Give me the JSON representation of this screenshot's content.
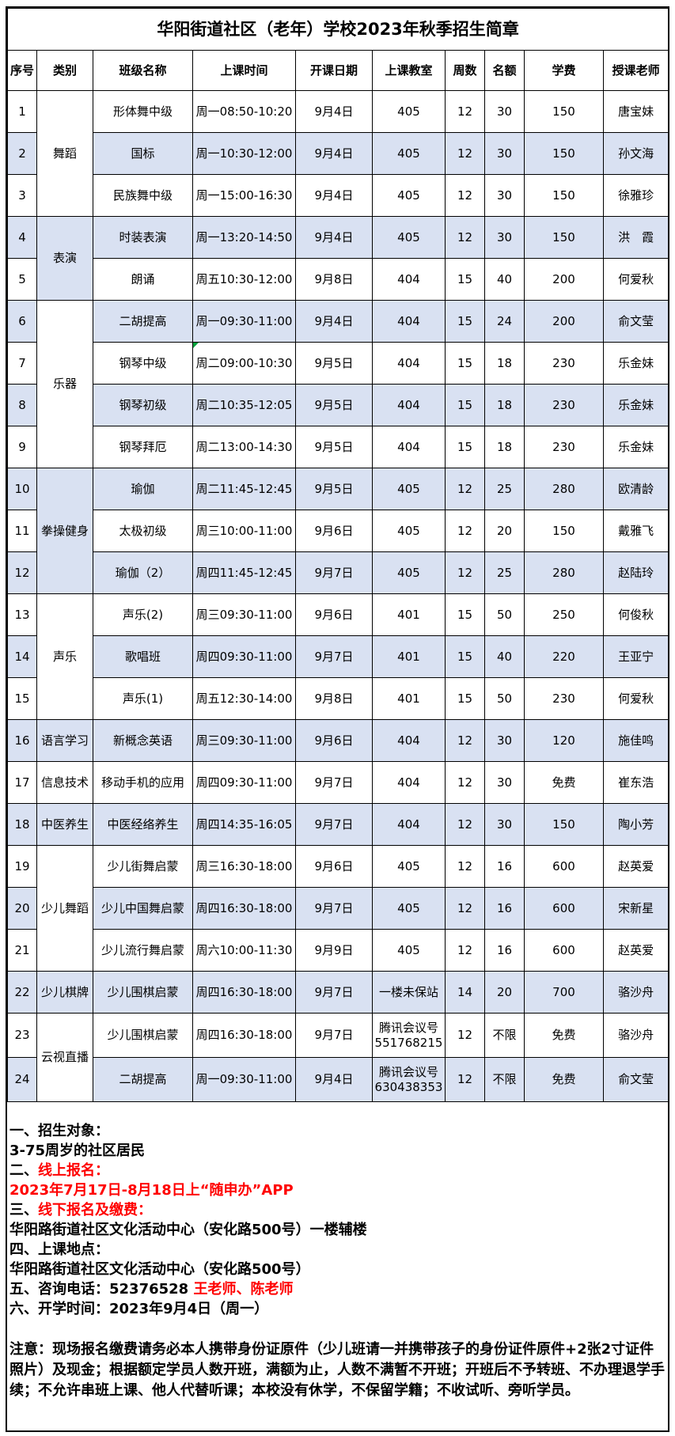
{
  "title": "华阳街道社区（老年）学校2023年秋季招生简章",
  "colors": {
    "row_shade": "#d9e1f2",
    "red_text": "#ff0000",
    "border": "#000000",
    "corner_mark_green": "#00a23c"
  },
  "table": {
    "columns": [
      "序号",
      "类别",
      "班级名称",
      "上课时间",
      "开课日期",
      "上课教室",
      "周数",
      "名额",
      "学费",
      "授课老师"
    ],
    "categories": [
      {
        "label": "舞蹈",
        "start": 1,
        "span": 3
      },
      {
        "label": "表演",
        "start": 4,
        "span": 2
      },
      {
        "label": "乐器",
        "start": 6,
        "span": 4
      },
      {
        "label": "拳操健身",
        "start": 10,
        "span": 3
      },
      {
        "label": "声乐",
        "start": 13,
        "span": 3
      },
      {
        "label": "语言学习",
        "start": 16,
        "span": 1
      },
      {
        "label": "信息技术",
        "start": 17,
        "span": 1
      },
      {
        "label": "中医养生",
        "start": 18,
        "span": 1
      },
      {
        "label": "少儿舞蹈",
        "start": 19,
        "span": 3
      },
      {
        "label": "少儿棋牌",
        "start": 22,
        "span": 1
      },
      {
        "label": "云视直播",
        "start": 23,
        "span": 2
      }
    ],
    "rows": [
      {
        "seq": "1",
        "class_name": "形体舞中级",
        "time": "周一08:50-10:20",
        "date": "9月4日",
        "room": "405",
        "weeks": "12",
        "quota": "30",
        "fee": "150",
        "teacher": "唐宝妹"
      },
      {
        "seq": "2",
        "class_name": "国标",
        "time": "周一10:30-12:00",
        "date": "9月4日",
        "room": "405",
        "weeks": "12",
        "quota": "30",
        "fee": "150",
        "teacher": "孙文海"
      },
      {
        "seq": "3",
        "class_name": "民族舞中级",
        "time": "周一15:00-16:30",
        "date": "9月4日",
        "room": "405",
        "weeks": "12",
        "quota": "30",
        "fee": "150",
        "teacher": "徐雅珍"
      },
      {
        "seq": "4",
        "class_name": "时装表演",
        "time": "周一13:20-14:50",
        "date": "9月4日",
        "room": "405",
        "weeks": "12",
        "quota": "30",
        "fee": "150",
        "teacher": "洪　霞"
      },
      {
        "seq": "5",
        "class_name": "朗诵",
        "time": "周五10:30-12:00",
        "date": "9月8日",
        "room": "404",
        "weeks": "15",
        "quota": "40",
        "fee": "200",
        "teacher": "何爱秋"
      },
      {
        "seq": "6",
        "class_name": "二胡提高",
        "time": "周一09:30-11:00",
        "date": "9月4日",
        "room": "404",
        "weeks": "15",
        "quota": "24",
        "fee": "200",
        "teacher": "俞文莹"
      },
      {
        "seq": "7",
        "class_name": "钢琴中级",
        "time": "周二09:00-10:30",
        "date": "9月5日",
        "room": "404",
        "weeks": "15",
        "quota": "18",
        "fee": "230",
        "teacher": "乐金妹",
        "corner_mark": true
      },
      {
        "seq": "8",
        "class_name": "钢琴初级",
        "time": "周二10:35-12:05",
        "date": "9月5日",
        "room": "404",
        "weeks": "15",
        "quota": "18",
        "fee": "230",
        "teacher": "乐金妹"
      },
      {
        "seq": "9",
        "class_name": "钢琴拜厄",
        "time": "周二13:00-14:30",
        "date": "9月5日",
        "room": "404",
        "weeks": "15",
        "quota": "18",
        "fee": "230",
        "teacher": "乐金妹"
      },
      {
        "seq": "10",
        "class_name": "瑜伽",
        "time": "周二11:45-12:45",
        "date": "9月5日",
        "room": "405",
        "weeks": "12",
        "quota": "25",
        "fee": "280",
        "teacher": "欧清龄"
      },
      {
        "seq": "11",
        "class_name": "太极初级",
        "time": "周三10:00-11:00",
        "date": "9月6日",
        "room": "405",
        "weeks": "12",
        "quota": "20",
        "fee": "150",
        "teacher": "戴雅飞"
      },
      {
        "seq": "12",
        "class_name": "瑜伽（2）",
        "time": "周四11:45-12:45",
        "date": "9月7日",
        "room": "405",
        "weeks": "12",
        "quota": "25",
        "fee": "280",
        "teacher": "赵陆玲"
      },
      {
        "seq": "13",
        "class_name": "声乐(2)",
        "time": "周三09:30-11:00",
        "date": "9月6日",
        "room": "401",
        "weeks": "15",
        "quota": "50",
        "fee": "250",
        "teacher": "何俊秋"
      },
      {
        "seq": "14",
        "class_name": "歌唱班",
        "time": "周四09:30-11:00",
        "date": "9月7日",
        "room": "401",
        "weeks": "15",
        "quota": "40",
        "fee": "220",
        "teacher": "王亚宁"
      },
      {
        "seq": "15",
        "class_name": "声乐(1)",
        "time": "周五12:30-14:00",
        "date": "9月8日",
        "room": "401",
        "weeks": "15",
        "quota": "50",
        "fee": "230",
        "teacher": "何爱秋"
      },
      {
        "seq": "16",
        "class_name": "新概念英语",
        "time": "周三09:30-11:00",
        "date": "9月6日",
        "room": "404",
        "weeks": "12",
        "quota": "30",
        "fee": "120",
        "teacher": "施佳鸣"
      },
      {
        "seq": "17",
        "class_name": "移动手机的应用",
        "time": "周四09:30-11:00",
        "date": "9月7日",
        "room": "404",
        "weeks": "12",
        "quota": "30",
        "fee": "免费",
        "teacher": "崔东浩"
      },
      {
        "seq": "18",
        "class_name": "中医经络养生",
        "time": "周四14:35-16:05",
        "date": "9月7日",
        "room": "404",
        "weeks": "12",
        "quota": "30",
        "fee": "150",
        "teacher": "陶小芳"
      },
      {
        "seq": "19",
        "class_name": "少儿街舞启蒙",
        "time": "周三16:30-18:00",
        "date": "9月6日",
        "room": "405",
        "weeks": "12",
        "quota": "16",
        "fee": "600",
        "teacher": "赵英爱"
      },
      {
        "seq": "20",
        "class_name": "少儿中国舞启蒙",
        "time": "周四16:30-18:00",
        "date": "9月7日",
        "room": "405",
        "weeks": "12",
        "quota": "16",
        "fee": "600",
        "teacher": "宋新星"
      },
      {
        "seq": "21",
        "class_name": "少儿流行舞启蒙",
        "time": "周六10:00-11:30",
        "date": "9月9日",
        "room": "405",
        "weeks": "12",
        "quota": "16",
        "fee": "600",
        "teacher": "赵英爱"
      },
      {
        "seq": "22",
        "class_name": "少儿围棋启蒙",
        "time": "周四16:30-18:00",
        "date": "9月7日",
        "room": "一楼未保站",
        "weeks": "14",
        "quota": "20",
        "fee": "700",
        "teacher": "骆沙舟"
      },
      {
        "seq": "23",
        "class_name": "少儿围棋启蒙",
        "time": "周四16:30-18:00",
        "date": "9月7日",
        "room": "腾讯会议号\n551768215",
        "weeks": "12",
        "quota": "不限",
        "fee": "免费",
        "teacher": "骆沙舟",
        "tall": true
      },
      {
        "seq": "24",
        "class_name": "二胡提高",
        "time": "周一09:30-11:00",
        "date": "9月4日",
        "room": "腾讯会议号\n630438353",
        "weeks": "12",
        "quota": "不限",
        "fee": "免费",
        "teacher": "俞文莹",
        "tall": true
      }
    ]
  },
  "footer": {
    "lines": [
      [
        {
          "t": "一、招生对象：",
          "c": "black"
        }
      ],
      [
        {
          "t": "3-75周岁的社区居民",
          "c": "black"
        }
      ],
      [
        {
          "t": "二、",
          "c": "black"
        },
        {
          "t": "线上报名：",
          "c": "red"
        }
      ],
      [
        {
          "t": "2023年7月17日-8月18日上“随申办”APP",
          "c": "red"
        }
      ],
      [
        {
          "t": "三、",
          "c": "black"
        },
        {
          "t": "线下报名及缴费：",
          "c": "red"
        }
      ],
      [
        {
          "t": "华阳路街道社区文化活动中心（安化路500号）一楼辅楼",
          "c": "black"
        }
      ],
      [
        {
          "t": "四、上课地点：",
          "c": "black"
        }
      ],
      [
        {
          "t": "华阳路街道社区文化活动中心（安化路500号）",
          "c": "black"
        }
      ],
      [
        {
          "t": "五、咨询电话：52376528 ",
          "c": "black"
        },
        {
          "t": "王老师、陈老师",
          "c": "red"
        }
      ],
      [
        {
          "t": "六、开学时间：2023年9月4日（周一）",
          "c": "black"
        }
      ]
    ],
    "notice": "注意：现场报名缴费请务必本人携带身份证原件（少儿班请一并携带孩子的身份证件原件+2张2寸证件照片）及现金；根据额定学员人数开班，满额为止，人数不满暂不开班；开班后不予转班、不办理退学手续；不允许串班上课、他人代替听课；本校没有休学，不保留学籍；不收试听、旁听学员。"
  }
}
